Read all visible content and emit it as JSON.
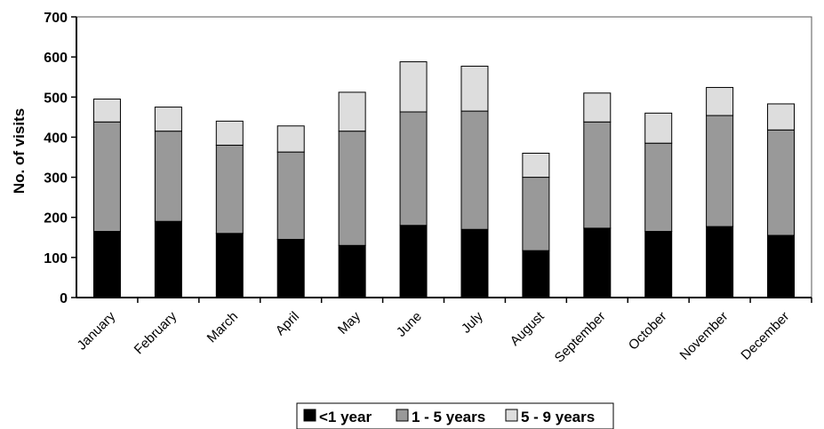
{
  "chart_data": {
    "type": "bar",
    "stacked": true,
    "title": "",
    "xlabel": "",
    "ylabel": "No. of visits",
    "ylim": [
      0,
      700
    ],
    "yticks": [
      0,
      100,
      200,
      300,
      400,
      500,
      600,
      700
    ],
    "grid": false,
    "legend_position": "bottom",
    "categories": [
      "January",
      "February",
      "March",
      "April",
      "May",
      "June",
      "July",
      "August",
      "September",
      "October",
      "November",
      "December"
    ],
    "series": [
      {
        "name": "<1 year",
        "color": "#000000",
        "values": [
          165,
          190,
          160,
          145,
          130,
          180,
          170,
          117,
          173,
          165,
          177,
          155
        ]
      },
      {
        "name": "1 - 5 years",
        "color": "#999999",
        "values": [
          273,
          225,
          220,
          218,
          285,
          283,
          295,
          183,
          265,
          220,
          277,
          263
        ]
      },
      {
        "name": "5 - 9 years",
        "color": "#dddddd",
        "values": [
          57,
          60,
          60,
          65,
          97,
          125,
          112,
          60,
          72,
          75,
          70,
          65
        ]
      }
    ]
  }
}
